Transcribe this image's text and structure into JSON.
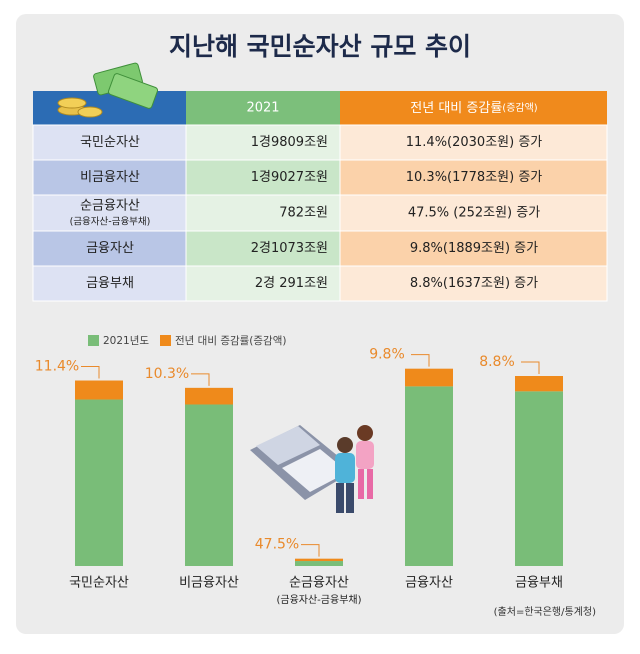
{
  "title": "지난해 국민순자산 규모 추이",
  "table": {
    "header": {
      "year": "2021",
      "change": "전년 대비 증감률",
      "change_note": "(증감액)"
    },
    "rows": [
      {
        "name": "국민순자산",
        "note": null,
        "value": "1경9809조원",
        "change": "11.4%(2030조원) 증가"
      },
      {
        "name": "비금융자산",
        "note": null,
        "value": "1경9027조원",
        "change": "10.3%(1778조원) 증가"
      },
      {
        "name": "순금융자산",
        "note": "(금융자산-금융부채)",
        "value": "782조원",
        "change": "47.5%  (252조원) 증가"
      },
      {
        "name": "금융자산",
        "note": null,
        "value": "2경1073조원",
        "change": "9.8%(1889조원) 증가"
      },
      {
        "name": "금융부채",
        "note": null,
        "value": "2경  291조원",
        "change": "8.8%(1637조원) 증가"
      }
    ]
  },
  "chart_data": {
    "type": "stacked_bar",
    "categories": [
      "국민순자산",
      "비금융자산",
      "순금융자산",
      "금융자산",
      "금융부채"
    ],
    "category_notes": [
      null,
      null,
      "(금융자산-금융부채)",
      null,
      null
    ],
    "series": [
      {
        "name": "2021년도",
        "color": "#79bd78",
        "values": [
          17779,
          17249,
          530,
          19184,
          18654
        ]
      },
      {
        "name": "전년 대비 증감률(증감액)",
        "color": "#ef8a1b",
        "values": [
          2030,
          1778,
          252,
          1889,
          1637
        ]
      }
    ],
    "rate_labels": [
      "11.4%",
      "10.3%",
      "47.5%",
      "9.8%",
      "8.8%"
    ],
    "ylim": [
      0,
      22000
    ],
    "source": "(출처=한국은행/통계청)"
  }
}
